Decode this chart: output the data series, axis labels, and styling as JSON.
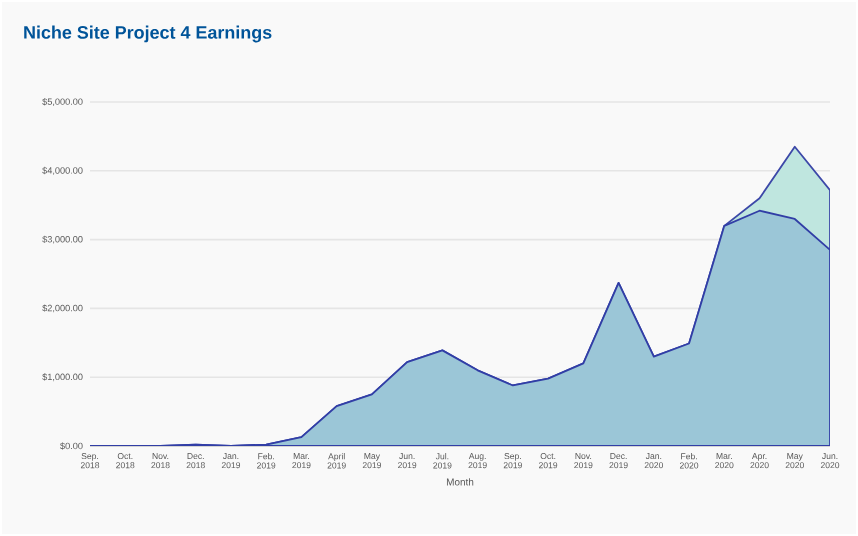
{
  "chart_data": {
    "type": "area",
    "title": "Niche Site Project 4 Earnings",
    "xlabel": "Month",
    "categories": [
      "Sep. 2018",
      "Oct. 2018",
      "Nov. 2018",
      "Dec. 2018",
      "Jan. 2019",
      "Feb. 2019",
      "Mar. 2019",
      "April 2019",
      "May 2019",
      "Jun. 2019",
      "Jul. 2019",
      "Aug. 2019",
      "Sep. 2019",
      "Oct. 2019",
      "Nov. 2019",
      "Dec. 2019",
      "Jan. 2020",
      "Feb. 2020",
      "Mar. 2020",
      "Apr. 2020",
      "May 2020",
      "Jun. 2020"
    ],
    "series": [
      {
        "color": "#bfe6df",
        "values": [
          0,
          0,
          0,
          20,
          0,
          20,
          130,
          580,
          750,
          1220,
          1390,
          1100,
          880,
          980,
          1200,
          2370,
          1300,
          1490,
          3200,
          3600,
          4350,
          3720
        ]
      },
      {
        "color": "#9bc6d7",
        "values": [
          0,
          0,
          0,
          20,
          0,
          20,
          130,
          580,
          750,
          1220,
          1390,
          1100,
          880,
          980,
          1200,
          2370,
          1300,
          1490,
          3200,
          3420,
          3300,
          2850
        ]
      }
    ],
    "ylim": [
      0,
      5000
    ],
    "yticks": [
      {
        "value": 0,
        "label": "$0.00"
      },
      {
        "value": 1000,
        "label": "$1,000.00"
      },
      {
        "value": 2000,
        "label": "$2,000.00"
      },
      {
        "value": 3000,
        "label": "$3,000.00"
      },
      {
        "value": 4000,
        "label": "$4,000.00"
      },
      {
        "value": 5000,
        "label": "$5,000.00"
      }
    ],
    "grid": "y"
  }
}
